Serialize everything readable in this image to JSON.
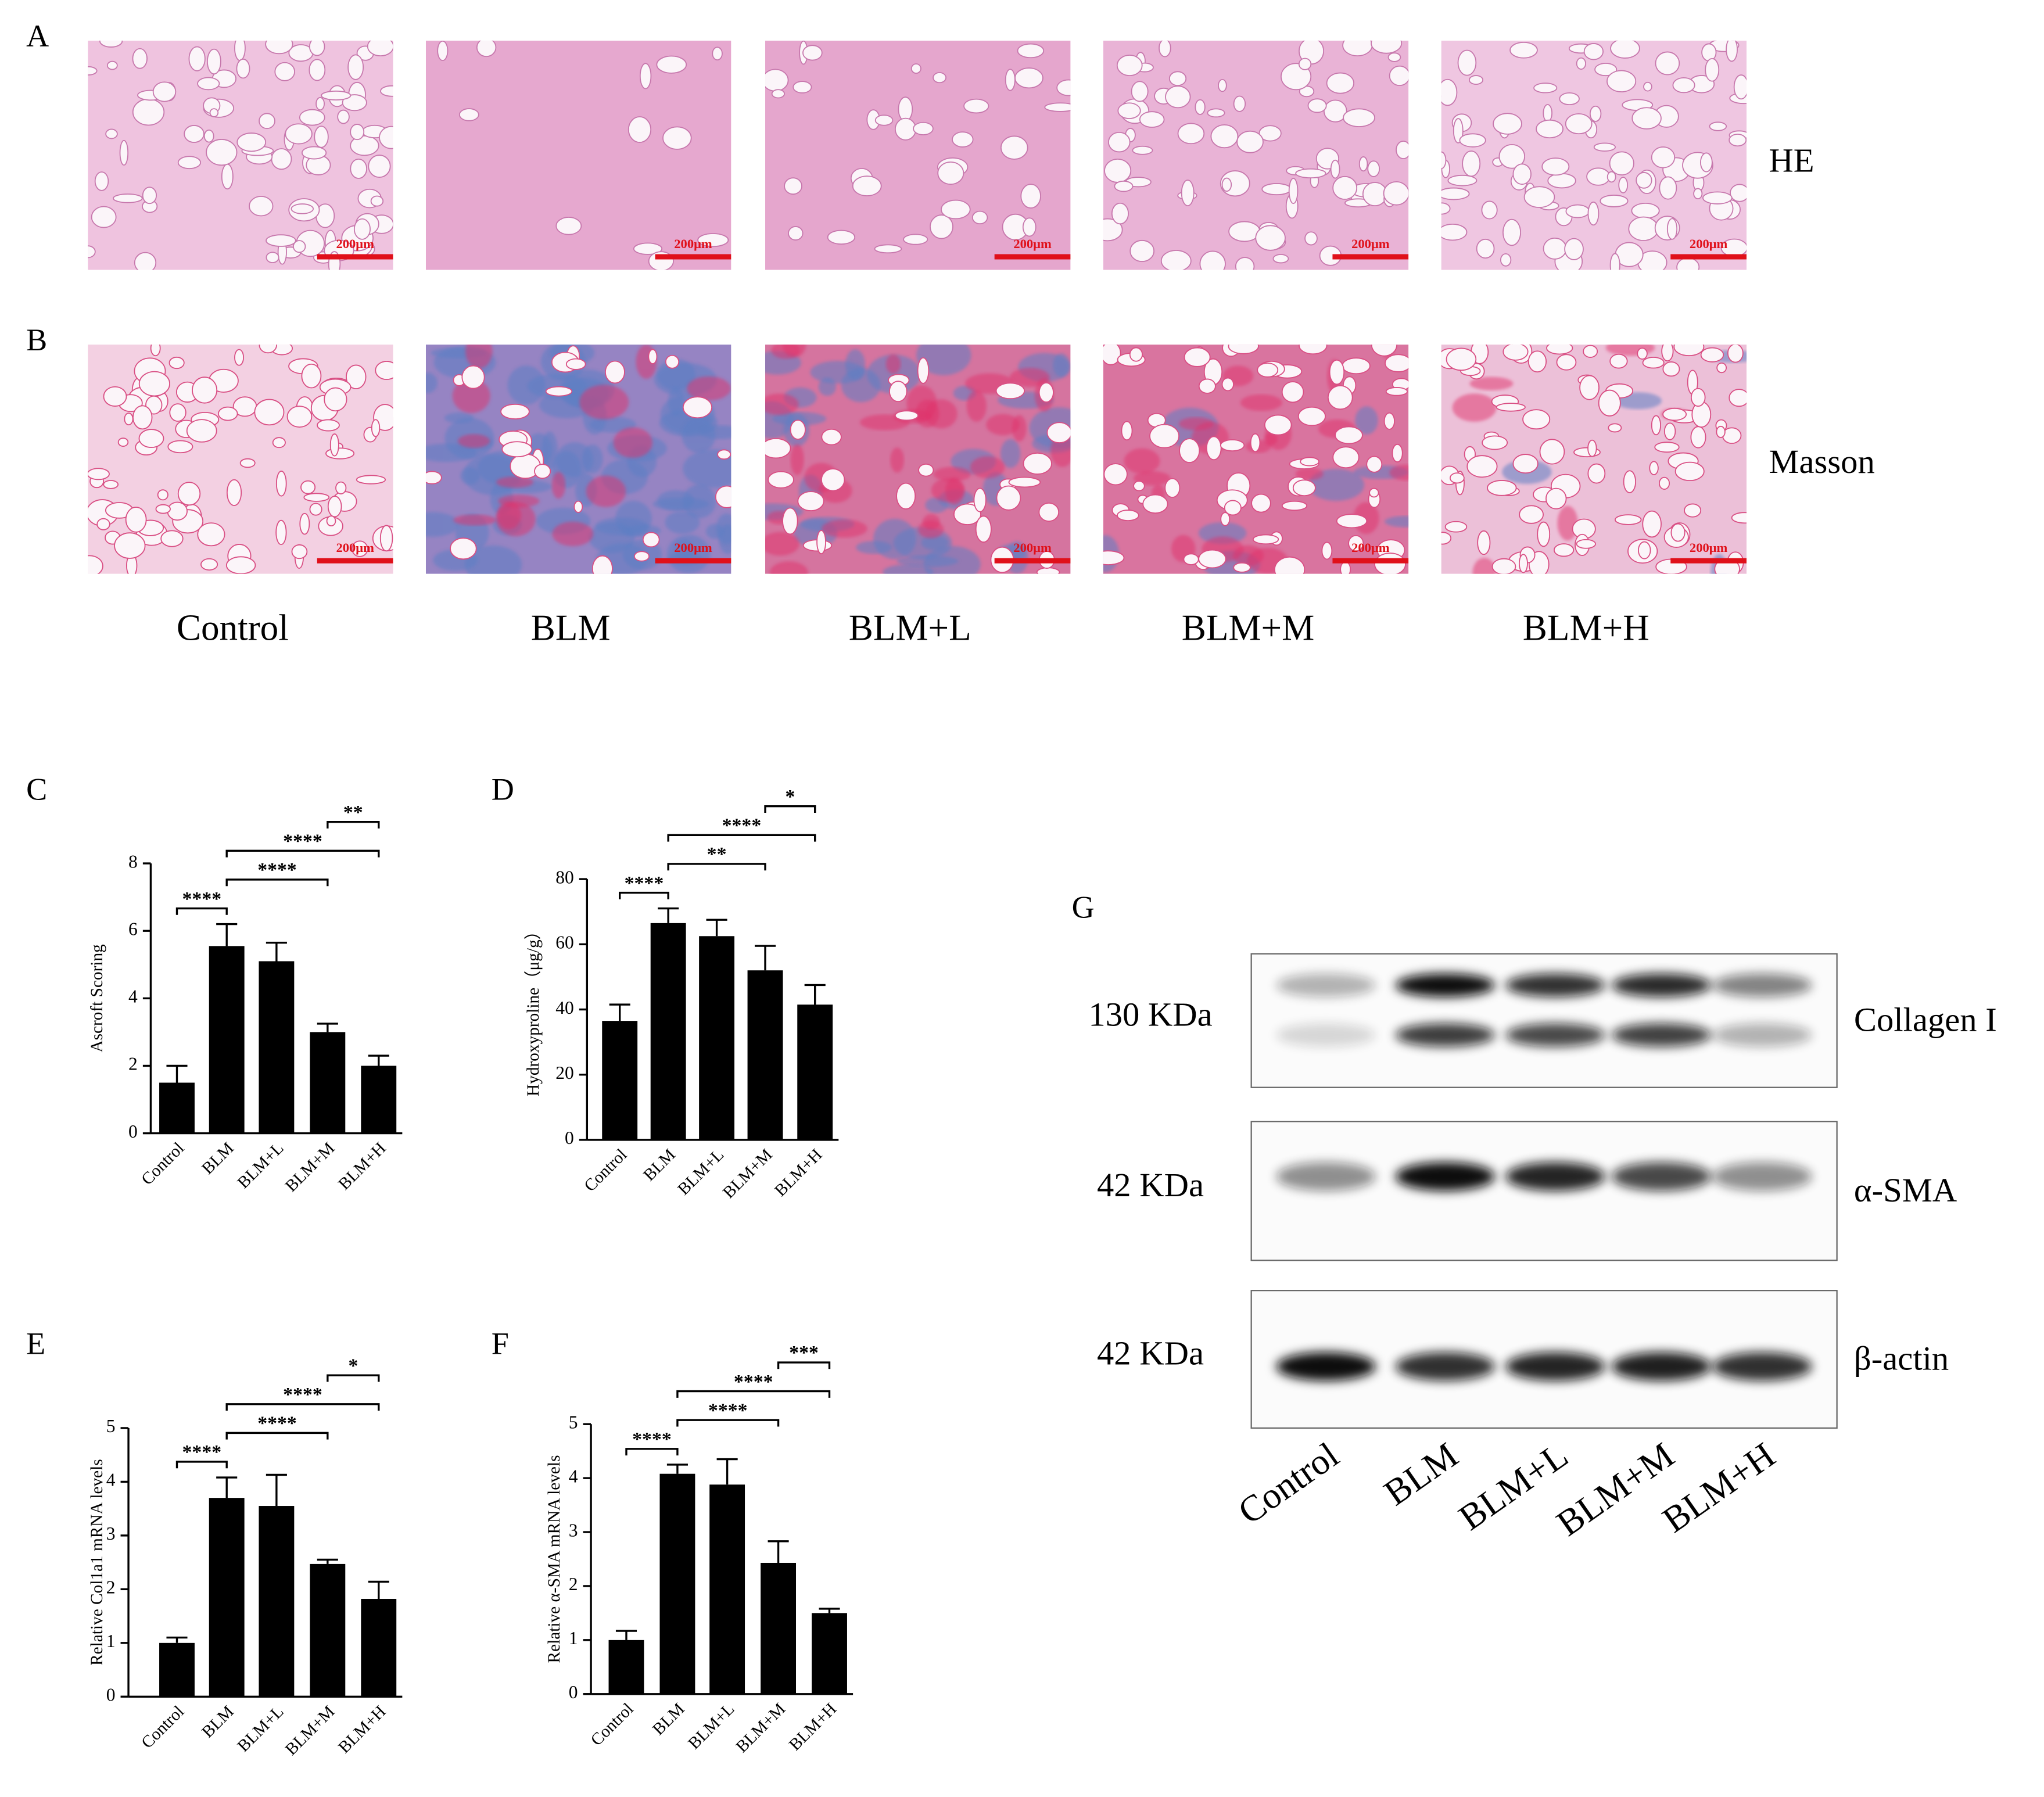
{
  "panel_labels": [
    "A",
    "B",
    "C",
    "D",
    "E",
    "F",
    "G"
  ],
  "histology": {
    "groups": [
      "Control",
      "BLM",
      "BLM+L",
      "BLM+M",
      "BLM+H"
    ],
    "stains": [
      "HE",
      "Masson"
    ],
    "scale_bar": "200μm"
  },
  "chart_data": [
    {
      "type": "bar",
      "y_label": "Ascroft Scoring",
      "color": "#000000",
      "categories": [
        "Control",
        "BLM",
        "BLM+L",
        "BLM+M",
        "BLM+H"
      ],
      "values": [
        1.5,
        5.55,
        5.1,
        3.0,
        2.0
      ],
      "errors": [
        0.5,
        0.65,
        0.55,
        0.25,
        0.3
      ],
      "ylim": [
        0,
        8
      ],
      "yticks": [
        0,
        2,
        4,
        6,
        8
      ],
      "comparisons": [
        {
          "groups": [
            "Control",
            "BLM"
          ],
          "label": "****"
        },
        {
          "groups": [
            "BLM",
            "BLM+M"
          ],
          "label": "****"
        },
        {
          "groups": [
            "BLM",
            "BLM+H"
          ],
          "label": "****"
        },
        {
          "groups": [
            "BLM+M",
            "BLM+H"
          ],
          "label": "**"
        }
      ]
    },
    {
      "type": "bar",
      "y_label": "Hydroxyproline（μg/g）",
      "color": "#000000",
      "categories": [
        "Control",
        "BLM",
        "BLM+L",
        "BLM+M",
        "BLM+H"
      ],
      "values": [
        36.5,
        66.5,
        62.5,
        52,
        41.5
      ],
      "errors": [
        5,
        4.5,
        5,
        7.5,
        6
      ],
      "ylim": [
        0,
        80
      ],
      "yticks": [
        0,
        20,
        40,
        60,
        80
      ],
      "comparisons": [
        {
          "groups": [
            "Control",
            "BLM"
          ],
          "label": "****"
        },
        {
          "groups": [
            "BLM",
            "BLM+M"
          ],
          "label": "**"
        },
        {
          "groups": [
            "BLM",
            "BLM+H"
          ],
          "label": "****"
        },
        {
          "groups": [
            "BLM+M",
            "BLM+H"
          ],
          "label": "*"
        }
      ]
    },
    {
      "type": "bar",
      "y_label": "Relative Col1a1 mRNA levels",
      "color": "#000000",
      "categories": [
        "Control",
        "BLM",
        "BLM+L",
        "BLM+M",
        "BLM+H"
      ],
      "values": [
        1.0,
        3.7,
        3.55,
        2.47,
        1.82
      ],
      "errors": [
        0.1,
        0.38,
        0.58,
        0.08,
        0.32
      ],
      "ylim": [
        0,
        5
      ],
      "yticks": [
        0,
        1,
        2,
        3,
        4,
        5
      ],
      "comparisons": [
        {
          "groups": [
            "Control",
            "BLM"
          ],
          "label": "****"
        },
        {
          "groups": [
            "BLM",
            "BLM+M"
          ],
          "label": "****"
        },
        {
          "groups": [
            "BLM",
            "BLM+H"
          ],
          "label": "****"
        },
        {
          "groups": [
            "BLM+M",
            "BLM+H"
          ],
          "label": "*"
        }
      ]
    },
    {
      "type": "bar",
      "y_label": "Relative α-SMA mRNA levels",
      "color": "#000000",
      "categories": [
        "Control",
        "BLM",
        "BLM+L",
        "BLM+M",
        "BLM+H"
      ],
      "values": [
        1.0,
        4.08,
        3.88,
        2.43,
        1.5
      ],
      "errors": [
        0.17,
        0.17,
        0.47,
        0.4,
        0.08
      ],
      "ylim": [
        0,
        5
      ],
      "yticks": [
        0,
        1,
        2,
        3,
        4,
        5
      ],
      "comparisons": [
        {
          "groups": [
            "Control",
            "BLM"
          ],
          "label": "****"
        },
        {
          "groups": [
            "BLM",
            "BLM+M"
          ],
          "label": "****"
        },
        {
          "groups": [
            "BLM",
            "BLM+H"
          ],
          "label": "****"
        },
        {
          "groups": [
            "BLM+M",
            "BLM+H"
          ],
          "label": "***"
        }
      ]
    }
  ],
  "western_blot": {
    "lanes": [
      "Control",
      "BLM",
      "BLM+L",
      "BLM+M",
      "BLM+H"
    ],
    "rows": [
      {
        "size": "130 KDa",
        "protein": "Collagen I"
      },
      {
        "size": "42 KDa",
        "protein": "α-SMA"
      },
      {
        "size": "42 KDa",
        "protein": "β-actin"
      }
    ]
  }
}
